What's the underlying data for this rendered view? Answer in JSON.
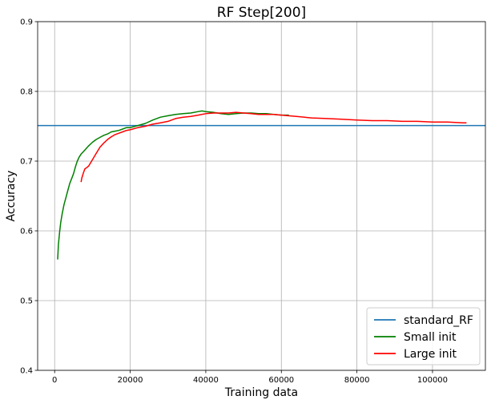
{
  "chart_data": {
    "type": "line",
    "title": "RF    Step[200]",
    "xlabel": "Training data",
    "ylabel": "Accuracy",
    "xlim": [
      -4500,
      114000
    ],
    "ylim": [
      0.4,
      0.9
    ],
    "xticks": [
      0,
      20000,
      40000,
      60000,
      80000,
      100000
    ],
    "xtick_labels": [
      "0",
      "20000",
      "40000",
      "60000",
      "80000",
      "100000"
    ],
    "yticks": [
      0.4,
      0.5,
      0.6,
      0.7,
      0.8,
      0.9
    ],
    "ytick_labels": [
      "0.4",
      "0.5",
      "0.6",
      "0.7",
      "0.8",
      "0.9"
    ],
    "grid": true,
    "legend_position": "lower-right",
    "series": [
      {
        "name": "standard_RF",
        "color": "#1f77b4",
        "style": "hline",
        "x": [
          -4500,
          114000
        ],
        "y": [
          0.751,
          0.751
        ]
      },
      {
        "name": "Small init",
        "color": "#008000",
        "x": [
          800,
          1000,
          1300,
          1600,
          2000,
          2500,
          3000,
          3500,
          4000,
          4500,
          5000,
          5500,
          6000,
          6500,
          7000,
          7500,
          8000,
          9000,
          10000,
          11000,
          12000,
          13000,
          14000,
          15000,
          16000,
          17000,
          18000,
          19000,
          20000,
          22000,
          24000,
          26000,
          28000,
          30000,
          32000,
          34000,
          36000,
          38000,
          39000,
          40000,
          42000,
          44000,
          46000,
          48000,
          50000,
          52000,
          54000,
          56000,
          58000,
          60000,
          62000
        ],
        "y": [
          0.559,
          0.58,
          0.598,
          0.612,
          0.625,
          0.638,
          0.648,
          0.658,
          0.668,
          0.675,
          0.682,
          0.692,
          0.7,
          0.706,
          0.71,
          0.713,
          0.716,
          0.722,
          0.727,
          0.731,
          0.734,
          0.737,
          0.739,
          0.742,
          0.743,
          0.744,
          0.746,
          0.748,
          0.748,
          0.751,
          0.754,
          0.759,
          0.763,
          0.765,
          0.767,
          0.768,
          0.769,
          0.771,
          0.772,
          0.771,
          0.77,
          0.768,
          0.767,
          0.768,
          0.769,
          0.769,
          0.768,
          0.768,
          0.767,
          0.766,
          0.766
        ]
      },
      {
        "name": "Large init",
        "color": "#ff0000",
        "x": [
          7000,
          7200,
          7600,
          8000,
          8600,
          9000,
          10000,
          11000,
          12000,
          13000,
          14000,
          15000,
          16000,
          17000,
          18000,
          19000,
          20000,
          22000,
          24000,
          26000,
          28000,
          30000,
          32000,
          34000,
          36000,
          38000,
          40000,
          42000,
          44000,
          46000,
          48000,
          50000,
          52000,
          54000,
          56000,
          58000,
          60000,
          64000,
          68000,
          72000,
          76000,
          80000,
          84000,
          88000,
          92000,
          96000,
          100000,
          104000,
          108000,
          109000
        ],
        "y": [
          0.67,
          0.676,
          0.683,
          0.689,
          0.691,
          0.693,
          0.702,
          0.711,
          0.72,
          0.726,
          0.731,
          0.735,
          0.738,
          0.74,
          0.742,
          0.744,
          0.745,
          0.748,
          0.75,
          0.753,
          0.755,
          0.757,
          0.761,
          0.763,
          0.764,
          0.766,
          0.768,
          0.769,
          0.769,
          0.769,
          0.77,
          0.769,
          0.768,
          0.767,
          0.767,
          0.767,
          0.766,
          0.764,
          0.762,
          0.761,
          0.76,
          0.759,
          0.758,
          0.758,
          0.757,
          0.757,
          0.756,
          0.756,
          0.755,
          0.755
        ]
      }
    ]
  }
}
